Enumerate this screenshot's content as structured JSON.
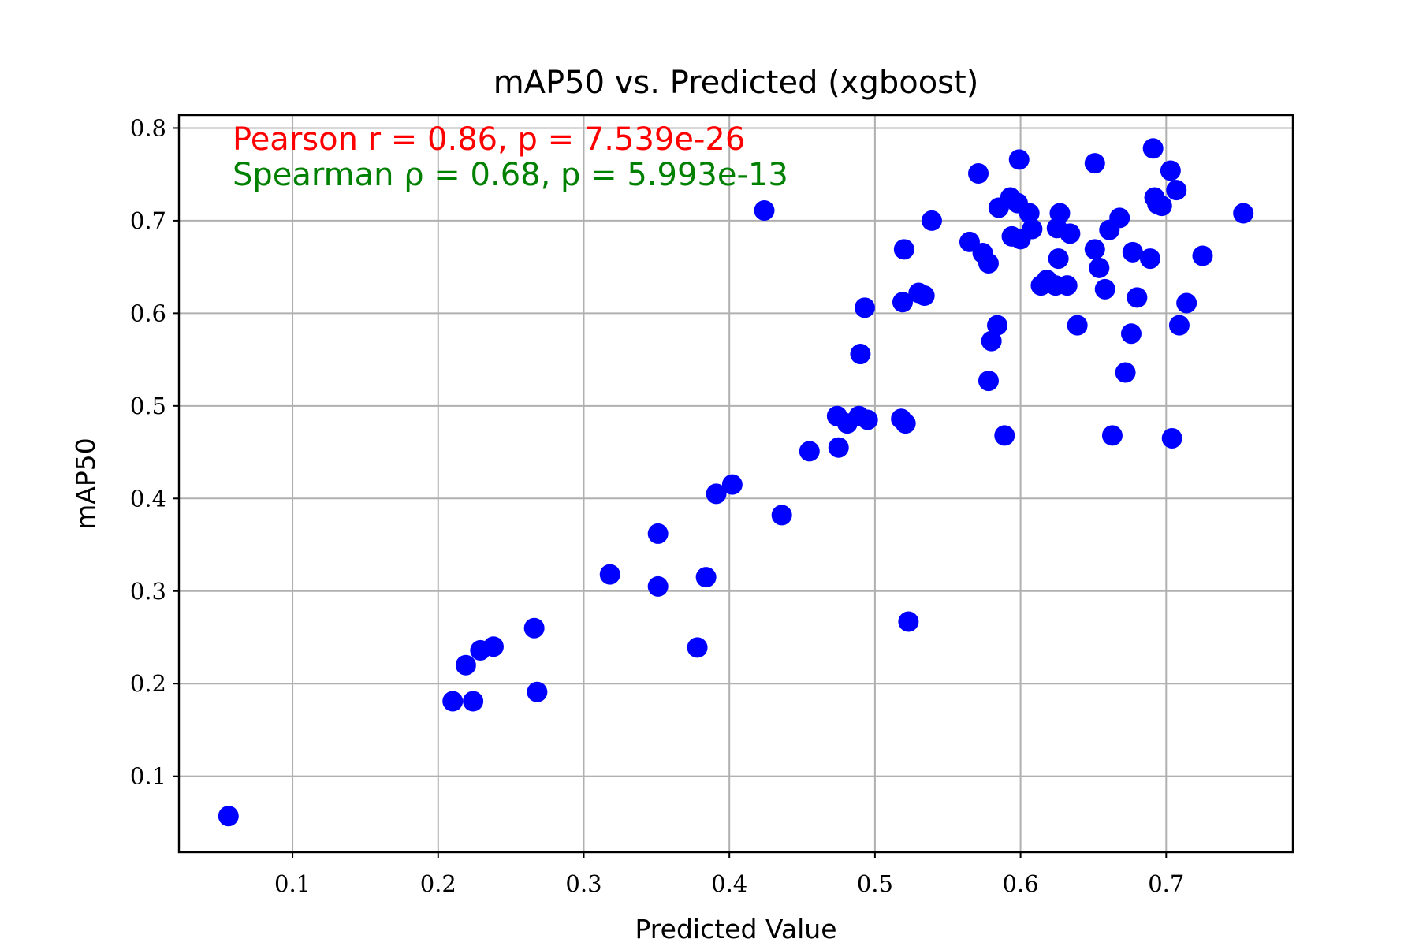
{
  "chart_data": {
    "type": "scatter",
    "title": "mAP50 vs. Predicted (xgboost)",
    "xlabel": "Predicted Value",
    "ylabel": "mAP50",
    "xlim": [
      0.022,
      0.787
    ],
    "ylim": [
      0.018,
      0.814
    ],
    "xticks": [
      0.1,
      0.2,
      0.3,
      0.4,
      0.5,
      0.6,
      0.7
    ],
    "yticks": [
      0.1,
      0.2,
      0.3,
      0.4,
      0.5,
      0.6,
      0.7,
      0.8
    ],
    "xtick_labels": [
      "0.1",
      "0.2",
      "0.3",
      "0.4",
      "0.5",
      "0.6",
      "0.7"
    ],
    "ytick_labels": [
      "0.1",
      "0.2",
      "0.3",
      "0.4",
      "0.5",
      "0.6",
      "0.7",
      "0.8"
    ],
    "grid": true,
    "marker_color": "#0000ff",
    "annotations": [
      {
        "text": "Pearson r = 0.86, p = 7.539e-26",
        "color": "#ff0000"
      },
      {
        "text": "Spearman ρ = 0.68, p = 5.993e-13",
        "color": "#008000"
      }
    ],
    "points": [
      [
        0.056,
        0.057
      ],
      [
        0.21,
        0.181
      ],
      [
        0.219,
        0.22
      ],
      [
        0.224,
        0.181
      ],
      [
        0.229,
        0.236
      ],
      [
        0.238,
        0.24
      ],
      [
        0.266,
        0.26
      ],
      [
        0.268,
        0.191
      ],
      [
        0.318,
        0.318
      ],
      [
        0.351,
        0.362
      ],
      [
        0.351,
        0.305
      ],
      [
        0.378,
        0.239
      ],
      [
        0.384,
        0.315
      ],
      [
        0.391,
        0.405
      ],
      [
        0.402,
        0.415
      ],
      [
        0.424,
        0.711
      ],
      [
        0.436,
        0.382
      ],
      [
        0.455,
        0.451
      ],
      [
        0.474,
        0.489
      ],
      [
        0.475,
        0.455
      ],
      [
        0.481,
        0.481
      ],
      [
        0.489,
        0.489
      ],
      [
        0.49,
        0.556
      ],
      [
        0.493,
        0.606
      ],
      [
        0.495,
        0.485
      ],
      [
        0.518,
        0.486
      ],
      [
        0.519,
        0.612
      ],
      [
        0.52,
        0.669
      ],
      [
        0.521,
        0.481
      ],
      [
        0.523,
        0.267
      ],
      [
        0.53,
        0.622
      ],
      [
        0.534,
        0.619
      ],
      [
        0.539,
        0.7
      ],
      [
        0.565,
        0.677
      ],
      [
        0.571,
        0.751
      ],
      [
        0.574,
        0.665
      ],
      [
        0.578,
        0.654
      ],
      [
        0.578,
        0.527
      ],
      [
        0.58,
        0.57
      ],
      [
        0.584,
        0.587
      ],
      [
        0.585,
        0.714
      ],
      [
        0.589,
        0.468
      ],
      [
        0.593,
        0.725
      ],
      [
        0.594,
        0.683
      ],
      [
        0.598,
        0.719
      ],
      [
        0.599,
        0.766
      ],
      [
        0.6,
        0.68
      ],
      [
        0.606,
        0.708
      ],
      [
        0.608,
        0.691
      ],
      [
        0.614,
        0.63
      ],
      [
        0.618,
        0.636
      ],
      [
        0.624,
        0.63
      ],
      [
        0.625,
        0.692
      ],
      [
        0.626,
        0.659
      ],
      [
        0.627,
        0.708
      ],
      [
        0.632,
        0.63
      ],
      [
        0.634,
        0.686
      ],
      [
        0.639,
        0.587
      ],
      [
        0.651,
        0.669
      ],
      [
        0.651,
        0.762
      ],
      [
        0.654,
        0.649
      ],
      [
        0.658,
        0.626
      ],
      [
        0.661,
        0.69
      ],
      [
        0.663,
        0.468
      ],
      [
        0.668,
        0.703
      ],
      [
        0.672,
        0.536
      ],
      [
        0.676,
        0.578
      ],
      [
        0.677,
        0.666
      ],
      [
        0.68,
        0.617
      ],
      [
        0.689,
        0.659
      ],
      [
        0.691,
        0.778
      ],
      [
        0.692,
        0.725
      ],
      [
        0.694,
        0.718
      ],
      [
        0.697,
        0.716
      ],
      [
        0.703,
        0.754
      ],
      [
        0.704,
        0.465
      ],
      [
        0.707,
        0.733
      ],
      [
        0.709,
        0.587
      ],
      [
        0.714,
        0.611
      ],
      [
        0.725,
        0.662
      ],
      [
        0.753,
        0.708
      ]
    ]
  }
}
